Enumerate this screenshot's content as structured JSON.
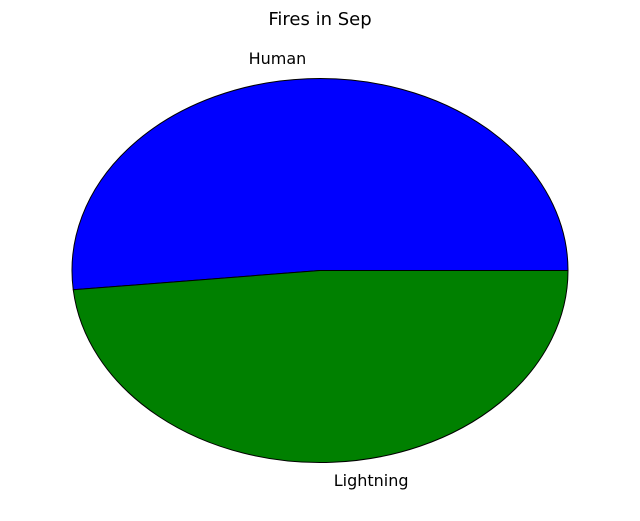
{
  "chart_data": {
    "type": "pie",
    "title": "Fires in Sep",
    "categories": [
      "Human",
      "Lightning"
    ],
    "values": [
      51.6,
      48.4
    ],
    "colors": [
      "#0000ff",
      "#008000"
    ],
    "edge_color": "#000000",
    "start_angle_deg": 0,
    "direction": "counterclockwise",
    "legend": "none"
  }
}
